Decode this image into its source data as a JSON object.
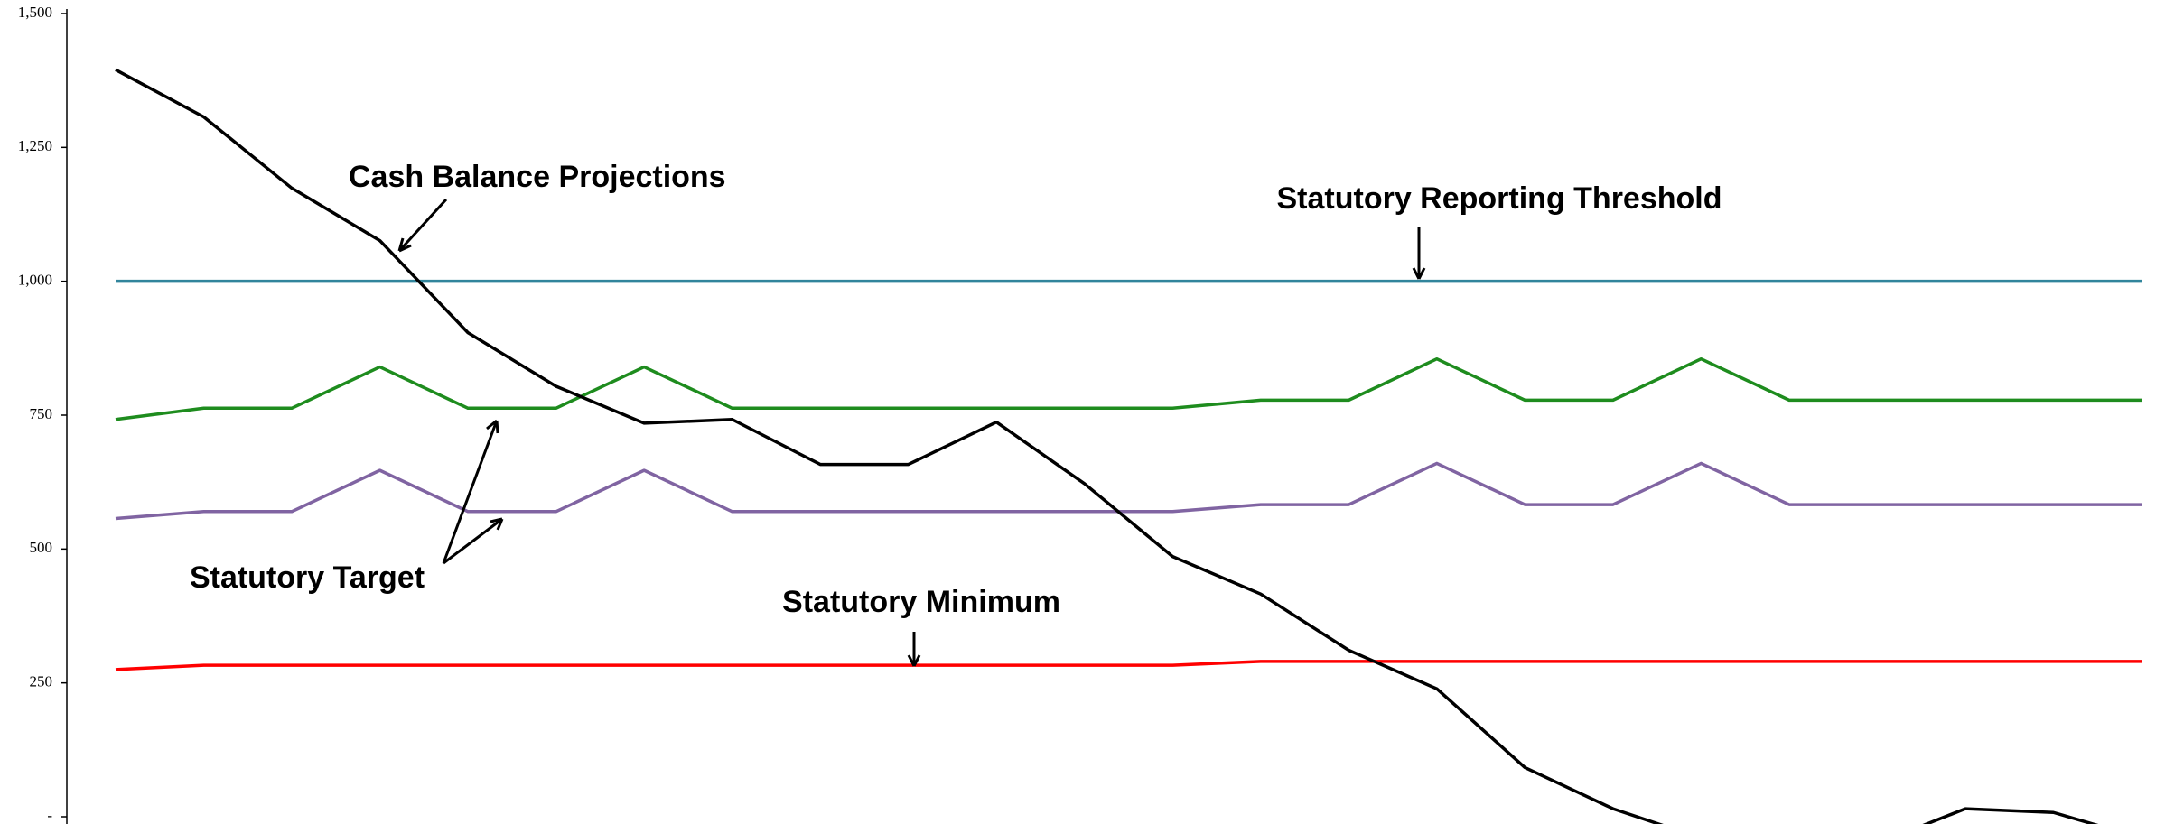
{
  "chart_data": {
    "type": "line",
    "categories": [
      null,
      null,
      null,
      null,
      null,
      null,
      null,
      null,
      null,
      null,
      null,
      null,
      null,
      null,
      null,
      null,
      null,
      null,
      null,
      null,
      null,
      null,
      null,
      null
    ],
    "series": [
      {
        "color": "#31859c",
        "values": [
          1000,
          1000,
          1000,
          1000,
          1000,
          1000,
          1000,
          1000,
          1000,
          1000,
          1000,
          1000,
          1000,
          1000,
          1000,
          1000,
          1000,
          1000,
          1000,
          1000,
          1000,
          1000,
          1000,
          1000
        ]
      },
      {
        "color": "#1e8c1e",
        "values": [
          742,
          763,
          763,
          840,
          763,
          763,
          840,
          763,
          763,
          763,
          763,
          763,
          763,
          778,
          778,
          855,
          778,
          778,
          855,
          778,
          778,
          778,
          778,
          778
        ]
      },
      {
        "color": "#8064a2",
        "values": [
          557,
          570,
          570,
          647,
          570,
          570,
          647,
          570,
          570,
          570,
          570,
          570,
          570,
          583,
          583,
          660,
          583,
          583,
          660,
          583,
          583,
          583,
          583,
          583
        ]
      },
      {
        "color": "#ff0000",
        "values": [
          275,
          283,
          283,
          283,
          283,
          283,
          283,
          283,
          283,
          283,
          283,
          283,
          283,
          290,
          290,
          290,
          290,
          290,
          290,
          290,
          290,
          290,
          290,
          290
        ]
      },
      {
        "color": "#000000",
        "values": [
          1395,
          1307,
          1174,
          1076,
          904,
          804,
          735,
          742,
          658,
          658,
          737,
          622,
          486,
          416,
          311,
          239,
          92,
          15,
          -40,
          -60,
          -50,
          15,
          8,
          -40
        ]
      }
    ],
    "ylim": [
      0,
      1500
    ],
    "yticks": [
      {
        "value": 0,
        "label": "-"
      },
      250,
      500,
      750,
      {
        "value": 1000,
        "label": "1,000"
      },
      {
        "value": 1250,
        "label": "1,250"
      },
      {
        "value": 1500,
        "label": "1,500"
      }
    ],
    "annotations": [
      "Cash Balance Projections",
      "Statutory Reporting Threshold",
      "Statutory Target",
      "Statutory Minimum"
    ]
  }
}
